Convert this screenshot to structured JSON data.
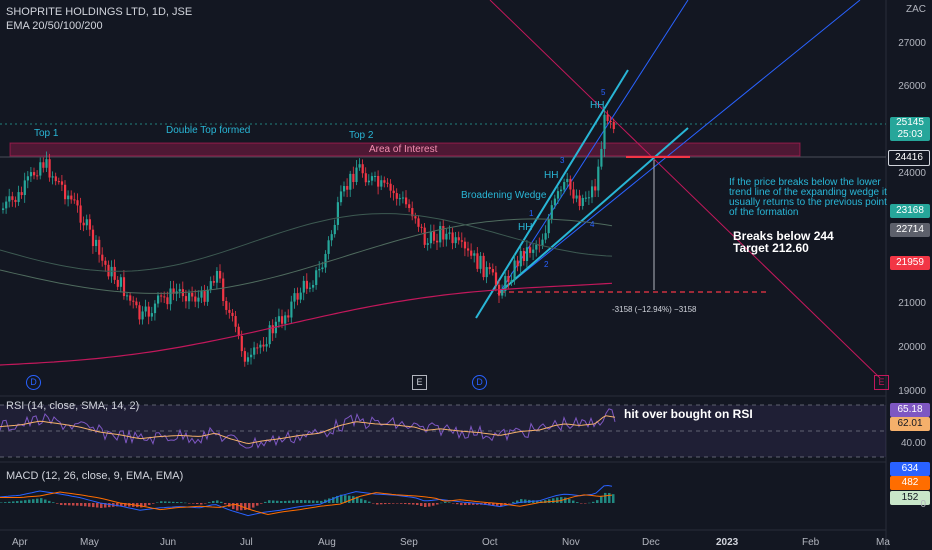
{
  "header": {
    "symbol": "SHOPRITE HOLDINGS LTD, 1D, JSE",
    "indicator": "EMA 20/50/100/200",
    "currency": "ZAC"
  },
  "price_axis": {
    "ticks": [
      "27000",
      "26000",
      "25000",
      "24000",
      "23000",
      "22000",
      "21000",
      "20000",
      "19000"
    ]
  },
  "price_tags": [
    {
      "value": "25145",
      "sub": "25:03",
      "color": "#26a69a"
    },
    {
      "value": "24416",
      "color": "#131722"
    },
    {
      "value": "23168",
      "color": "#26a69a"
    },
    {
      "value": "22714",
      "color": "#5d606b"
    },
    {
      "value": "21959",
      "color": "#f23645"
    }
  ],
  "annotations": {
    "top1": "Top 1",
    "top2": "Top 2",
    "double_top": "Double Top formed",
    "area_of_interest": "Area of Interest",
    "broadening": "Broadening Wedge",
    "hh1": "HH",
    "hh2": "HH",
    "hh3": "HH",
    "wave1": "1",
    "wave2": "2",
    "wave3": "3",
    "wave4": "4",
    "wave5": "5",
    "note_line1": "If the price breaks below the lower",
    "note_line2": "trend line of the expanding wedge it",
    "note_line3": "usually returns to the previous point",
    "note_line4": "of the formation",
    "breaks": "Breaks below 244",
    "target": "Target 212.60",
    "measure": "-3158 (−12.94%) −3158"
  },
  "events": {
    "d1": "D",
    "e1": "E",
    "d2": "D",
    "e2": "E"
  },
  "rsi": {
    "title": "RSI (14, close, SMA, 14, 2)",
    "note": "hit over bought on RSI",
    "value1": "65.18",
    "value2": "62.01",
    "tick": "40.00"
  },
  "macd": {
    "title": "MACD (12, 26, close, 9, EMA, EMA)",
    "v1": "634",
    "v2": "482",
    "v3": "152",
    "tick": "0"
  },
  "time_axis": [
    "Apr",
    "May",
    "Jun",
    "Jul",
    "Aug",
    "Sep",
    "Oct",
    "Nov",
    "Dec",
    "2023",
    "Feb",
    "Ma"
  ],
  "colors": {
    "bg": "#131722",
    "up": "#26a69a",
    "down": "#f23645",
    "wedge": "#29b6d6",
    "ema_red": "#c2185b",
    "rsi": "#7e57c2",
    "rsi_ma": "#f5b06b",
    "macd": "#2962ff",
    "signal": "#ff6d00"
  }
}
